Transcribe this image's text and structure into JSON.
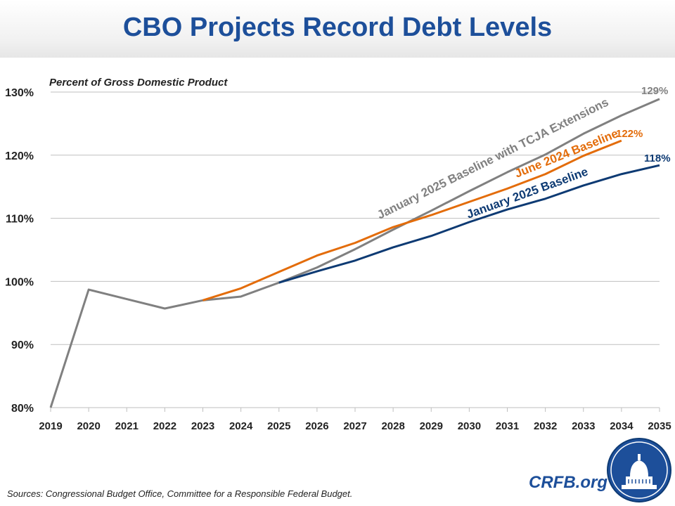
{
  "header": {
    "title": "CBO Projects Record Debt Levels"
  },
  "footer": {
    "sources": "Sources: Congressional Budget Office, Committee for a Responsible Federal Budget.",
    "brand": "CRFB.org"
  },
  "chart_data": {
    "type": "line",
    "title": "CBO Projects Record Debt Levels",
    "ylabel": "Percent of Gross Domestic Product",
    "ylim": [
      80,
      130
    ],
    "yticks": [
      80,
      90,
      100,
      110,
      120,
      130
    ],
    "ytick_labels": [
      "80%",
      "90%",
      "100%",
      "110%",
      "120%",
      "130%"
    ],
    "x": [
      2019,
      2020,
      2021,
      2022,
      2023,
      2024,
      2025,
      2026,
      2027,
      2028,
      2029,
      2030,
      2031,
      2032,
      2033,
      2034,
      2035
    ],
    "grid": "horizontal",
    "legend": "inline labels",
    "series": [
      {
        "name": "January 2025 Baseline with TCJA Extensions",
        "color": "#808080",
        "end_label": "129%",
        "values": [
          80,
          98.7,
          97.2,
          95.7,
          97.0,
          97.6,
          99.8,
          102.2,
          105.1,
          108.2,
          111.2,
          114.3,
          117.3,
          120.1,
          123.4,
          126.3,
          128.9
        ]
      },
      {
        "name": "June 2024 Baseline",
        "color": "#e36c0a",
        "end_label": "122%",
        "values": [
          null,
          null,
          null,
          null,
          97.0,
          98.9,
          101.5,
          104.1,
          106.1,
          108.6,
          110.5,
          112.6,
          114.7,
          117.0,
          119.9,
          122.3,
          null
        ]
      },
      {
        "name": "January 2025 Baseline",
        "color": "#0d3a73",
        "end_label": "118%",
        "values": [
          null,
          null,
          null,
          null,
          null,
          null,
          99.8,
          101.6,
          103.3,
          105.4,
          107.2,
          109.4,
          111.4,
          113.1,
          115.2,
          117.0,
          118.4
        ]
      }
    ]
  }
}
